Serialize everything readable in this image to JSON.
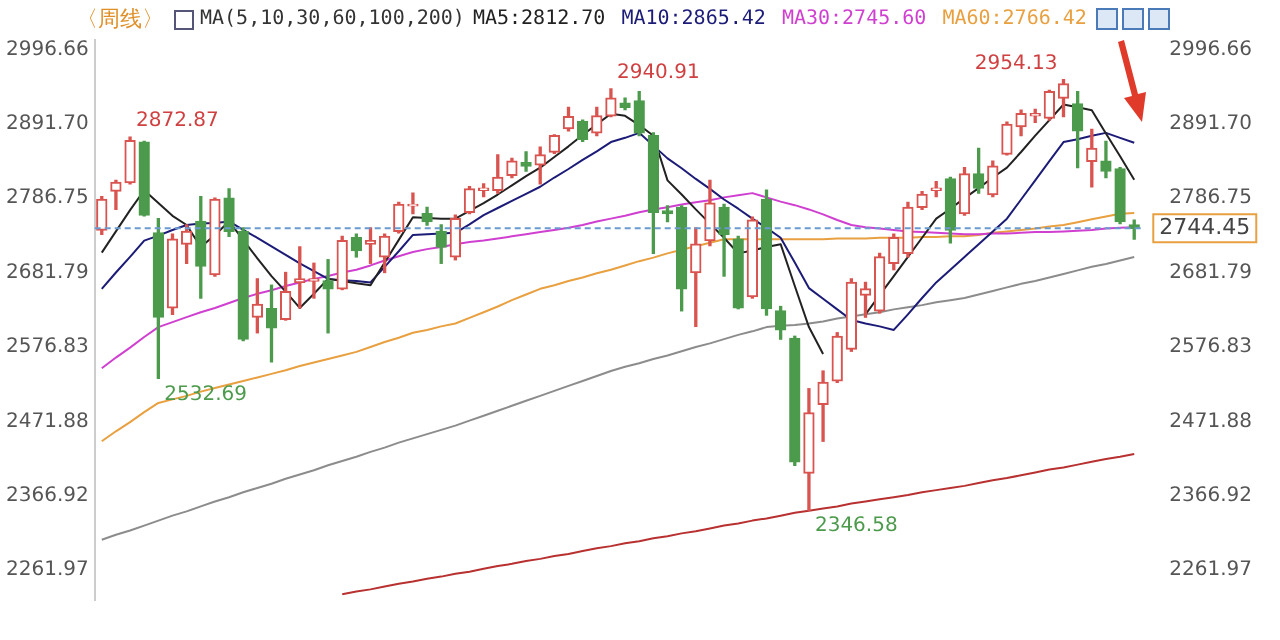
{
  "chart_data": {
    "type": "candlestick",
    "title": "〈周线〉",
    "subtitle": "MA(5,10,30,60,100,200)",
    "categories": [
      null,
      null,
      null,
      null,
      null,
      null,
      null,
      null,
      null,
      null,
      null,
      null,
      null,
      null,
      null,
      null,
      null,
      null,
      null,
      null,
      null,
      null,
      null,
      null,
      null,
      null,
      null,
      null,
      null,
      null,
      null,
      null,
      null,
      null,
      null,
      null,
      null,
      null,
      null,
      null,
      null,
      null,
      null,
      null,
      null,
      null,
      null,
      null,
      null,
      null,
      null,
      null,
      null,
      null,
      null,
      null,
      null,
      null,
      null,
      null,
      null,
      null,
      null,
      null,
      null,
      null,
      null,
      null,
      null,
      null,
      null,
      null,
      null,
      null
    ],
    "ohlc": [
      [
        2742,
        2789,
        2736,
        2785
      ],
      [
        2797,
        2812,
        2771,
        2809
      ],
      [
        2809,
        2872.87,
        2807,
        2868
      ],
      [
        2866,
        2867,
        2762,
        2763
      ],
      [
        2738,
        2758,
        2532.69,
        2619
      ],
      [
        2632,
        2736,
        2623,
        2729
      ],
      [
        2722,
        2749,
        2695,
        2740
      ],
      [
        2754,
        2789,
        2646,
        2691
      ],
      [
        2679,
        2787,
        2677,
        2785
      ],
      [
        2787,
        2800,
        2733,
        2740
      ],
      [
        2740,
        2745,
        2586,
        2588
      ],
      [
        2619,
        2673,
        2597,
        2637
      ],
      [
        2631,
        2664,
        2556,
        2604
      ],
      [
        2616,
        2682,
        2615,
        2655
      ],
      [
        2668,
        2718,
        2632,
        2673
      ],
      [
        2670,
        2695,
        2646,
        2673
      ],
      [
        2670,
        2700,
        2597,
        2659
      ],
      [
        2659,
        2733,
        2658,
        2727
      ],
      [
        2731,
        2736,
        2704,
        2713
      ],
      [
        2722,
        2745,
        2695,
        2727
      ],
      [
        2704,
        2736,
        2682,
        2733
      ],
      [
        2740,
        2781,
        2738,
        2778
      ],
      [
        2776,
        2794,
        2765,
        2778
      ],
      [
        2765,
        2774,
        2749,
        2754
      ],
      [
        2740,
        2749,
        2695,
        2718
      ],
      [
        2704,
        2763,
        2700,
        2758
      ],
      [
        2767,
        2803,
        2765,
        2800
      ],
      [
        2798,
        2807,
        2789,
        2801
      ],
      [
        2798,
        2848,
        2794,
        2816
      ],
      [
        2819,
        2843,
        2816,
        2839
      ],
      [
        2837,
        2852,
        2825,
        2832
      ],
      [
        2834,
        2859,
        2807,
        2848
      ],
      [
        2852,
        2876,
        2850,
        2875
      ],
      [
        2885,
        2915,
        2882,
        2902
      ],
      [
        2895,
        2897,
        2867,
        2870
      ],
      [
        2879,
        2915,
        2875,
        2903
      ],
      [
        2903,
        2940.91,
        2902,
        2928
      ],
      [
        2921,
        2928,
        2912,
        2915
      ],
      [
        2924,
        2937,
        2875,
        2879
      ],
      [
        2875,
        2879,
        2709,
        2767
      ],
      [
        2769,
        2776,
        2754,
        2765
      ],
      [
        2774,
        2776,
        2628,
        2659
      ],
      [
        2682,
        2745,
        2606,
        2722
      ],
      [
        2727,
        2812,
        2720,
        2780
      ],
      [
        2774,
        2778,
        2677,
        2736
      ],
      [
        2729,
        2733,
        2631,
        2632
      ],
      [
        2648,
        2760,
        2646,
        2756
      ],
      [
        2785,
        2798,
        2622,
        2631
      ],
      [
        2628,
        2634,
        2588,
        2601
      ],
      [
        2589,
        2592,
        2410,
        2415
      ],
      [
        2399,
        2518,
        2346.58,
        2484
      ],
      [
        2496,
        2543,
        2444,
        2527
      ],
      [
        2529,
        2597,
        2527,
        2592
      ],
      [
        2574,
        2673,
        2571,
        2668
      ],
      [
        2650,
        2668,
        2619,
        2659
      ],
      [
        2628,
        2709,
        2625,
        2704
      ],
      [
        2695,
        2736,
        2686,
        2731
      ],
      [
        2709,
        2781,
        2704,
        2774
      ],
      [
        2774,
        2796,
        2771,
        2792
      ],
      [
        2798,
        2810,
        2789,
        2801
      ],
      [
        2814,
        2816,
        2724,
        2742
      ],
      [
        2765,
        2830,
        2763,
        2821
      ],
      [
        2821,
        2857,
        2794,
        2801
      ],
      [
        2792,
        2839,
        2789,
        2832
      ],
      [
        2849,
        2894,
        2848,
        2891
      ],
      [
        2888,
        2911,
        2875,
        2906
      ],
      [
        2903,
        2912,
        2894,
        2906
      ],
      [
        2900,
        2939,
        2897,
        2937
      ],
      [
        2928,
        2954.13,
        2902,
        2948
      ],
      [
        2920,
        2937,
        2830,
        2882
      ],
      [
        2839,
        2884,
        2803,
        2857
      ],
      [
        2839,
        2867,
        2816,
        2825
      ],
      [
        2828,
        2830,
        2751,
        2754
      ],
      [
        2749,
        2756,
        2729,
        2744.45
      ]
    ],
    "series": [
      {
        "type": "line",
        "name": "MA5:2812.70",
        "color": "#222222",
        "values": [
          2710,
          2740,
          2770,
          2798,
          2780,
          2762,
          2749,
          2718,
          2735,
          2754,
          2728,
          2702,
          2677,
          2655,
          2632,
          2652,
          2673,
          2670,
          2667,
          2664,
          2696,
          2728,
          2760,
          2759,
          2758,
          2758,
          2769,
          2780,
          2792,
          2805,
          2818,
          2830,
          2845,
          2860,
          2876,
          2891,
          2906,
          2903,
          2890,
          2875,
          2812,
          2792,
          2771,
          2751,
          2731,
          2709,
          2713,
          2718,
          2722,
          2663,
          2605,
          2567,
          null,
          null,
          2623,
          2650,
          2677,
          2704,
          2731,
          2758,
          2772,
          2787,
          2801,
          2816,
          2830,
          2852,
          2875,
          2897,
          2919,
          2915,
          2911,
          2878,
          2846,
          2813
        ]
      },
      {
        "type": "line",
        "name": "MA10:2865.42",
        "color": "#1c1c78",
        "values": [
          2659,
          2682,
          2704,
          2727,
          2734,
          2742,
          2749,
          2751,
          2752,
          2754,
          2742,
          2731,
          2719,
          2707,
          2695,
          2684,
          2673,
          2671,
          2670,
          2668,
          2690,
          2712,
          2735,
          2736,
          2737,
          2738,
          2750,
          2763,
          2773,
          2783,
          2793,
          2803,
          2816,
          2828,
          2841,
          2853,
          2866,
          2872,
          2879,
          2861,
          2843,
          2829,
          2814,
          2800,
          2785,
          2772,
          2758,
          2745,
          2731,
          2696,
          2660,
          2645,
          2630,
          2615,
          2610,
          2606,
          2601,
          2623,
          2646,
          2668,
          2686,
          2704,
          2722,
          2740,
          2758,
          2785,
          2812,
          2839,
          2866,
          2870,
          2875,
          2879,
          2872,
          2865
        ]
      },
      {
        "type": "line",
        "name": "MA30:2745.60",
        "color": "#d040d0",
        "values": [
          2547,
          2562,
          2576,
          2591,
          2605,
          2612,
          2619,
          2626,
          2632,
          2639,
          2646,
          2652,
          2657,
          2663,
          2668,
          2673,
          2677,
          2682,
          2686,
          2692,
          2699,
          2705,
          2711,
          2715,
          2718,
          2722,
          2725,
          2727,
          2730,
          2733,
          2736,
          2739,
          2742,
          2745,
          2749,
          2754,
          2758,
          2762,
          2767,
          2771,
          2774,
          2778,
          2781,
          2784,
          2788,
          2791,
          2794,
          2788,
          2782,
          2777,
          2771,
          2764,
          2756,
          2749,
          2746,
          2744,
          2742,
          2740,
          2739,
          2738,
          2737,
          2736,
          2736,
          2737,
          2737,
          2738,
          2739,
          2739,
          2740,
          2741,
          2742,
          2744,
          2745,
          2746
        ]
      },
      {
        "type": "line",
        "name": "MA60:2766.42",
        "color": "#e8a040",
        "values": [
          2444,
          2458,
          2471,
          2485,
          2498,
          2503,
          2508,
          2514,
          2519,
          2524,
          2529,
          2534,
          2539,
          2544,
          2550,
          2555,
          2560,
          2565,
          2570,
          2577,
          2584,
          2590,
          2597,
          2601,
          2606,
          2610,
          2618,
          2626,
          2634,
          2643,
          2651,
          2659,
          2664,
          2670,
          2675,
          2681,
          2686,
          2692,
          2698,
          2703,
          2709,
          2714,
          2719,
          2724,
          2729,
          2729,
          2729,
          2729,
          2729,
          2729,
          2729,
          2729,
          2730,
          2730,
          2730,
          2731,
          2731,
          2731,
          2732,
          2732,
          2733,
          2733,
          2735,
          2738,
          2740,
          2742,
          2744,
          2747,
          2749,
          2753,
          2757,
          2761,
          2765,
          2766
        ]
      },
      {
        "type": "line",
        "color": "#8c8c8c",
        "values": [
          2305,
          2312,
          2318,
          2325,
          2332,
          2339,
          2345,
          2352,
          2359,
          2365,
          2372,
          2378,
          2384,
          2391,
          2397,
          2403,
          2410,
          2416,
          2422,
          2429,
          2435,
          2442,
          2448,
          2454,
          2460,
          2466,
          2473,
          2480,
          2487,
          2494,
          2501,
          2508,
          2515,
          2522,
          2529,
          2536,
          2543,
          2549,
          2554,
          2560,
          2565,
          2571,
          2577,
          2582,
          2588,
          2594,
          2599,
          2605,
          2607,
          2608,
          2610,
          2613,
          2617,
          2620,
          2623,
          2626,
          2630,
          2633,
          2636,
          2640,
          2643,
          2646,
          2651,
          2656,
          2661,
          2666,
          2670,
          2675,
          2680,
          2685,
          2690,
          2694,
          2699,
          2704
        ]
      },
      {
        "type": "line",
        "color": "#b83030",
        "values": [
          null,
          null,
          null,
          null,
          null,
          null,
          null,
          null,
          null,
          null,
          null,
          null,
          null,
          null,
          null,
          null,
          null,
          2228,
          2232,
          2235,
          2239,
          2243,
          2246,
          2250,
          2253,
          2257,
          2260,
          2264,
          2268,
          2271,
          2275,
          2278,
          2282,
          2285,
          2289,
          2293,
          2296,
          2300,
          2303,
          2307,
          2310,
          2314,
          2317,
          2321,
          2325,
          2328,
          2332,
          2335,
          2339,
          2343,
          2346,
          2349,
          2352,
          2356,
          2359,
          2362,
          2365,
          2368,
          2372,
          2375,
          2378,
          2381,
          2385,
          2389,
          2392,
          2396,
          2400,
          2404,
          2407,
          2411,
          2415,
          2419,
          2422,
          2426
        ]
      }
    ],
    "ylim": [
      2220,
      3010
    ],
    "yticks": [
      2996.66,
      {
        "value": 2891.7,
        "label": "2891.70"
      },
      2786.75,
      2681.79,
      2576.83,
      2471.88,
      2366.92,
      2261.97
    ],
    "y2lim": [
      2220,
      3010
    ],
    "y2ticks": [
      2996.66,
      {
        "value": 2891.7,
        "label": "2891.70"
      },
      2786.75,
      2681.79,
      2576.83,
      2471.88,
      2366.92,
      2261.97
    ],
    "ref_lines": [
      {
        "axis": "y2",
        "value": 2744.45,
        "label": "2744.45",
        "color": "#6a9ad0",
        "line_style": "dashed"
      }
    ],
    "annotations": [
      "2872.87",
      "2532.69",
      "2940.91",
      "2346.58",
      "2954.13"
    ],
    "legend": "top",
    "grid": false
  }
}
